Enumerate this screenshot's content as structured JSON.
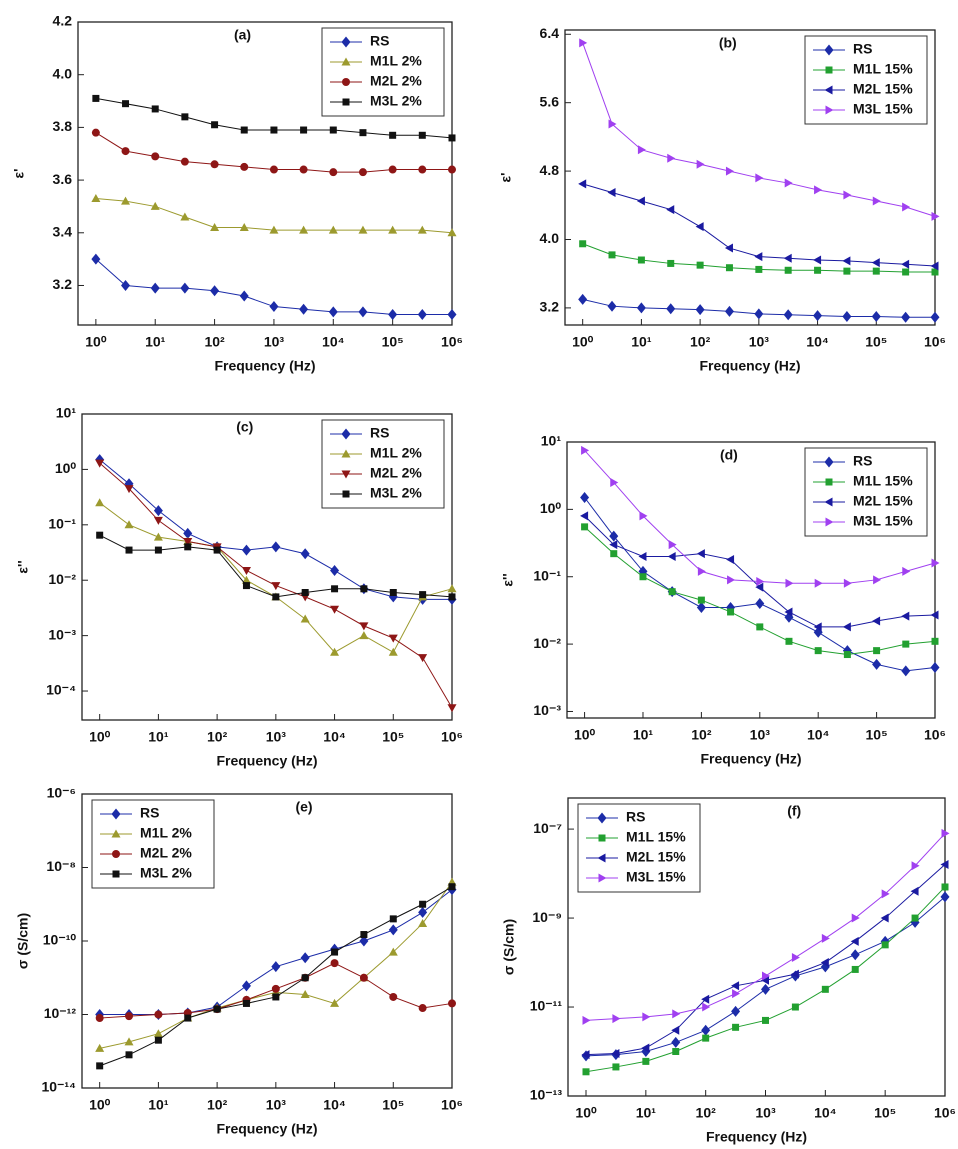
{
  "chart_data": [
    {
      "type": "line",
      "title": "(a)",
      "xlabel": "Frequency (Hz)",
      "ylabel": "ε'",
      "xscale": "log",
      "yscale": "linear",
      "legend": "upper right",
      "x": [
        1,
        3.16,
        10,
        31.6,
        100,
        316,
        1000,
        3160,
        10000,
        31600,
        100000,
        316000,
        1000000
      ],
      "xlim": [
        0.5,
        1000000
      ],
      "xticks": [
        {
          "value": 1,
          "label": "10⁰"
        },
        {
          "value": 10,
          "label": "10¹"
        },
        {
          "value": 100,
          "label": "10²"
        },
        {
          "value": 1000,
          "label": "10³"
        },
        {
          "value": 10000,
          "label": "10⁴"
        },
        {
          "value": 100000,
          "label": "10⁵"
        },
        {
          "value": 1000000,
          "label": "10⁶"
        }
      ],
      "ylim": [
        3.05,
        4.2
      ],
      "yticks": [
        3.2,
        3.4,
        3.6,
        3.8,
        {
          "value": 4,
          "label": "4.0"
        },
        4.2
      ],
      "series": [
        {
          "name": "RS",
          "color": "#1c2ca8",
          "marker": "diamond",
          "values": [
            3.3,
            3.2,
            3.19,
            3.19,
            3.18,
            3.16,
            3.12,
            3.11,
            3.1,
            3.1,
            3.09,
            3.09,
            3.09
          ]
        },
        {
          "name": "M1L 2%",
          "color": "#9c9a2e",
          "marker": "triangle-up",
          "values": [
            3.53,
            3.52,
            3.5,
            3.46,
            3.42,
            3.42,
            3.41,
            3.41,
            3.41,
            3.41,
            3.41,
            3.41,
            3.4
          ]
        },
        {
          "name": "M2L 2%",
          "color": "#8e1616",
          "marker": "circle",
          "values": [
            3.78,
            3.71,
            3.69,
            3.67,
            3.66,
            3.65,
            3.64,
            3.64,
            3.63,
            3.63,
            3.64,
            3.64,
            3.64
          ]
        },
        {
          "name": "M3L 2%",
          "color": "#111111",
          "marker": "square",
          "values": [
            3.91,
            3.89,
            3.87,
            3.84,
            3.81,
            3.79,
            3.79,
            3.79,
            3.79,
            3.78,
            3.77,
            3.77,
            3.76
          ]
        }
      ]
    },
    {
      "type": "line",
      "title": "(b)",
      "xlabel": "Frequency (Hz)",
      "ylabel": "ε'",
      "xscale": "log",
      "yscale": "linear",
      "legend": "upper right",
      "x": [
        1,
        3.16,
        10,
        31.6,
        100,
        316,
        1000,
        3160,
        10000,
        31600,
        100000,
        316000,
        1000000
      ],
      "xlim": [
        0.5,
        1000000
      ],
      "xticks": [
        {
          "value": 1,
          "label": "10⁰"
        },
        {
          "value": 10,
          "label": "10¹"
        },
        {
          "value": 100,
          "label": "10²"
        },
        {
          "value": 1000,
          "label": "10³"
        },
        {
          "value": 10000,
          "label": "10⁴"
        },
        {
          "value": 100000,
          "label": "10⁵"
        },
        {
          "value": 1000000,
          "label": "10⁶"
        }
      ],
      "ylim": [
        3.0,
        6.45
      ],
      "yticks": [
        3.2,
        {
          "value": 4,
          "label": "4.0"
        },
        4.8,
        5.6,
        6.4
      ],
      "series": [
        {
          "name": "RS",
          "color": "#1c2ca8",
          "marker": "diamond",
          "values": [
            3.3,
            3.22,
            3.2,
            3.19,
            3.18,
            3.16,
            3.13,
            3.12,
            3.11,
            3.1,
            3.1,
            3.09,
            3.09
          ]
        },
        {
          "name": "M1L 15%",
          "color": "#22a030",
          "marker": "square",
          "values": [
            3.95,
            3.82,
            3.76,
            3.72,
            3.7,
            3.67,
            3.65,
            3.64,
            3.64,
            3.63,
            3.63,
            3.62,
            3.62
          ]
        },
        {
          "name": "M2L 15%",
          "color": "#1a1aa0",
          "marker": "triangle-left",
          "values": [
            4.65,
            4.55,
            4.45,
            4.35,
            4.15,
            3.9,
            3.8,
            3.78,
            3.76,
            3.75,
            3.73,
            3.71,
            3.69
          ]
        },
        {
          "name": "M3L 15%",
          "color": "#a040f0",
          "marker": "triangle-right",
          "values": [
            6.3,
            5.35,
            5.05,
            4.95,
            4.88,
            4.8,
            4.72,
            4.66,
            4.58,
            4.52,
            4.45,
            4.38,
            4.27
          ]
        }
      ]
    },
    {
      "type": "line",
      "title": "(c)",
      "xlabel": "Frequency (Hz)",
      "ylabel": "ε''",
      "xscale": "log",
      "yscale": "log",
      "legend": "upper right",
      "x": [
        1,
        3.16,
        10,
        31.6,
        100,
        316,
        1000,
        3160,
        10000,
        31600,
        100000,
        316000,
        1000000
      ],
      "xlim": [
        0.5,
        1000000
      ],
      "xticks": [
        {
          "value": 1,
          "label": "10⁰"
        },
        {
          "value": 10,
          "label": "10¹"
        },
        {
          "value": 100,
          "label": "10²"
        },
        {
          "value": 1000,
          "label": "10³"
        },
        {
          "value": 10000,
          "label": "10⁴"
        },
        {
          "value": 100000,
          "label": "10⁵"
        },
        {
          "value": 1000000,
          "label": "10⁶"
        }
      ],
      "ylim": [
        3e-05,
        10
      ],
      "yticks": [
        {
          "value": 0.0001,
          "label": "10⁻⁴"
        },
        {
          "value": 0.001,
          "label": "10⁻³"
        },
        {
          "value": 0.01,
          "label": "10⁻²"
        },
        {
          "value": 0.1,
          "label": "10⁻¹"
        },
        {
          "value": 1,
          "label": "10⁰"
        },
        {
          "value": 10,
          "label": "10¹"
        }
      ],
      "series": [
        {
          "name": "RS",
          "color": "#1c2ca8",
          "marker": "diamond",
          "values": [
            1.5,
            0.55,
            0.18,
            0.07,
            0.04,
            0.035,
            0.04,
            0.03,
            0.015,
            0.007,
            0.005,
            0.0045,
            0.0045
          ]
        },
        {
          "name": "M1L 2%",
          "color": "#9c9a2e",
          "marker": "triangle-up",
          "values": [
            0.25,
            0.1,
            0.06,
            0.05,
            0.04,
            0.01,
            0.005,
            0.002,
            0.0005,
            0.001,
            0.0005,
            0.005,
            0.007
          ]
        },
        {
          "name": "M2L 2%",
          "color": "#8e1616",
          "marker": "triangle-down",
          "values": [
            1.3,
            0.45,
            0.12,
            0.05,
            0.04,
            0.015,
            0.008,
            0.005,
            0.003,
            0.0015,
            0.0009,
            0.0004,
            5e-05
          ]
        },
        {
          "name": "M3L 2%",
          "color": "#111111",
          "marker": "square",
          "values": [
            0.065,
            0.035,
            0.035,
            0.04,
            0.035,
            0.008,
            0.005,
            0.006,
            0.007,
            0.007,
            0.006,
            0.0055,
            0.005
          ]
        }
      ]
    },
    {
      "type": "line",
      "title": "(d)",
      "xlabel": "Frequency (Hz)",
      "ylabel": "ε''",
      "xscale": "log",
      "yscale": "log",
      "legend": "upper right",
      "x": [
        1,
        3.16,
        10,
        31.6,
        100,
        316,
        1000,
        3160,
        10000,
        31600,
        100000,
        316000,
        1000000
      ],
      "xlim": [
        0.5,
        1000000
      ],
      "xticks": [
        {
          "value": 1,
          "label": "10⁰"
        },
        {
          "value": 10,
          "label": "10¹"
        },
        {
          "value": 100,
          "label": "10²"
        },
        {
          "value": 1000,
          "label": "10³"
        },
        {
          "value": 10000,
          "label": "10⁴"
        },
        {
          "value": 100000,
          "label": "10⁵"
        },
        {
          "value": 1000000,
          "label": "10⁶"
        }
      ],
      "ylim": [
        0.0008,
        10
      ],
      "yticks": [
        {
          "value": 0.001,
          "label": "10⁻³"
        },
        {
          "value": 0.01,
          "label": "10⁻²"
        },
        {
          "value": 0.1,
          "label": "10⁻¹"
        },
        {
          "value": 1,
          "label": "10⁰"
        },
        {
          "value": 10,
          "label": "10¹"
        }
      ],
      "series": [
        {
          "name": "RS",
          "color": "#1c2ca8",
          "marker": "diamond",
          "values": [
            1.5,
            0.4,
            0.12,
            0.06,
            0.035,
            0.035,
            0.04,
            0.025,
            0.015,
            0.008,
            0.005,
            0.004,
            0.0045
          ]
        },
        {
          "name": "M1L 15%",
          "color": "#22a030",
          "marker": "square",
          "values": [
            0.55,
            0.22,
            0.1,
            0.06,
            0.045,
            0.03,
            0.018,
            0.011,
            0.008,
            0.007,
            0.008,
            0.01,
            0.011
          ]
        },
        {
          "name": "M2L 15%",
          "color": "#1a1aa0",
          "marker": "triangle-left",
          "values": [
            0.8,
            0.3,
            0.2,
            0.2,
            0.22,
            0.18,
            0.07,
            0.03,
            0.018,
            0.018,
            0.022,
            0.026,
            0.027
          ]
        },
        {
          "name": "M3L 15%",
          "color": "#a040f0",
          "marker": "triangle-right",
          "values": [
            7.5,
            2.5,
            0.8,
            0.3,
            0.12,
            0.09,
            0.085,
            0.08,
            0.08,
            0.08,
            0.09,
            0.12,
            0.16
          ]
        }
      ]
    },
    {
      "type": "line",
      "title": "(e)",
      "xlabel": "Frequency (Hz)",
      "ylabel": "σ (S/cm)",
      "xscale": "log",
      "yscale": "log",
      "legend": "upper left",
      "x": [
        1,
        3.16,
        10,
        31.6,
        100,
        316,
        1000,
        3160,
        10000,
        31600,
        100000,
        316000,
        1000000
      ],
      "xlim": [
        0.5,
        1000000
      ],
      "xticks": [
        {
          "value": 1,
          "label": "10⁰"
        },
        {
          "value": 10,
          "label": "10¹"
        },
        {
          "value": 100,
          "label": "10²"
        },
        {
          "value": 1000,
          "label": "10³"
        },
        {
          "value": 10000,
          "label": "10⁴"
        },
        {
          "value": 100000,
          "label": "10⁵"
        },
        {
          "value": 1000000,
          "label": "10⁶"
        }
      ],
      "ylim": [
        1e-14,
        1e-06
      ],
      "yticks": [
        {
          "value": 1e-14,
          "label": "10⁻¹⁴"
        },
        {
          "value": 1e-12,
          "label": "10⁻¹²"
        },
        {
          "value": 1e-10,
          "label": "10⁻¹⁰"
        },
        {
          "value": 1e-08,
          "label": "10⁻⁸"
        },
        {
          "value": 1e-06,
          "label": "10⁻⁶"
        }
      ],
      "series": [
        {
          "name": "RS",
          "color": "#1c2ca8",
          "marker": "diamond",
          "values": [
            1e-12,
            1e-12,
            1e-12,
            1.1e-12,
            1.6e-12,
            6e-12,
            2e-11,
            3.5e-11,
            6e-11,
            1e-10,
            2e-10,
            6e-10,
            2.5e-09
          ]
        },
        {
          "name": "M1L 2%",
          "color": "#9c9a2e",
          "marker": "triangle-up",
          "values": [
            1.2e-13,
            1.8e-13,
            3e-13,
            8e-13,
            1.5e-12,
            2.5e-12,
            4e-12,
            3.5e-12,
            2e-12,
            1e-11,
            5e-11,
            3e-10,
            4e-09
          ]
        },
        {
          "name": "M2L 2%",
          "color": "#8e1616",
          "marker": "circle",
          "values": [
            8e-13,
            9e-13,
            1e-12,
            1.1e-12,
            1.4e-12,
            2.5e-12,
            5e-12,
            1e-11,
            2.5e-11,
            1e-11,
            3e-12,
            1.5e-12,
            2e-12
          ]
        },
        {
          "name": "M3L 2%",
          "color": "#111111",
          "marker": "square",
          "values": [
            4e-14,
            8e-14,
            2e-13,
            8e-13,
            1.4e-12,
            2e-12,
            3e-12,
            1e-11,
            5e-11,
            1.5e-10,
            4e-10,
            1e-09,
            3e-09
          ]
        }
      ]
    },
    {
      "type": "line",
      "title": "(f)",
      "xlabel": "Frequency (Hz)",
      "ylabel": "σ (S/cm)",
      "xscale": "log",
      "yscale": "log",
      "legend": "upper left",
      "x": [
        1,
        3.16,
        10,
        31.6,
        100,
        316,
        1000,
        3160,
        10000,
        31600,
        100000,
        316000,
        1000000
      ],
      "xlim": [
        0.5,
        1000000
      ],
      "xticks": [
        {
          "value": 1,
          "label": "10⁰"
        },
        {
          "value": 10,
          "label": "10¹"
        },
        {
          "value": 100,
          "label": "10²"
        },
        {
          "value": 1000,
          "label": "10³"
        },
        {
          "value": 10000,
          "label": "10⁴"
        },
        {
          "value": 100000,
          "label": "10⁵"
        },
        {
          "value": 1000000,
          "label": "10⁶"
        }
      ],
      "ylim": [
        1e-13,
        5e-07
      ],
      "yticks": [
        {
          "value": 1e-13,
          "label": "10⁻¹³"
        },
        {
          "value": 1e-11,
          "label": "10⁻¹¹"
        },
        {
          "value": 1e-09,
          "label": "10⁻⁹"
        },
        {
          "value": 1e-07,
          "label": "10⁻⁷"
        }
      ],
      "series": [
        {
          "name": "RS",
          "color": "#1c2ca8",
          "marker": "diamond",
          "values": [
            8e-13,
            8.5e-13,
            1e-12,
            1.6e-12,
            3e-12,
            8e-12,
            2.5e-11,
            5e-11,
            8e-11,
            1.5e-10,
            3e-10,
            8e-10,
            3e-09
          ]
        },
        {
          "name": "M1L 15%",
          "color": "#22a030",
          "marker": "square",
          "values": [
            3.5e-13,
            4.5e-13,
            6e-13,
            1e-12,
            2e-12,
            3.5e-12,
            5e-12,
            1e-11,
            2.5e-11,
            7e-11,
            2.5e-10,
            1e-09,
            5e-09
          ]
        },
        {
          "name": "M2L 15%",
          "color": "#1a1aa0",
          "marker": "triangle-left",
          "values": [
            8.5e-13,
            9e-13,
            1.2e-12,
            3e-12,
            1.5e-11,
            3e-11,
            4e-11,
            5.5e-11,
            1e-10,
            3e-10,
            1e-09,
            4e-09,
            1.6e-08
          ]
        },
        {
          "name": "M3L 15%",
          "color": "#a040f0",
          "marker": "triangle-right",
          "values": [
            5e-12,
            5.5e-12,
            6e-12,
            7e-12,
            1e-11,
            2e-11,
            5e-11,
            1.3e-10,
            3.5e-10,
            1e-09,
            3.5e-09,
            1.5e-08,
            8e-08
          ]
        }
      ]
    }
  ]
}
